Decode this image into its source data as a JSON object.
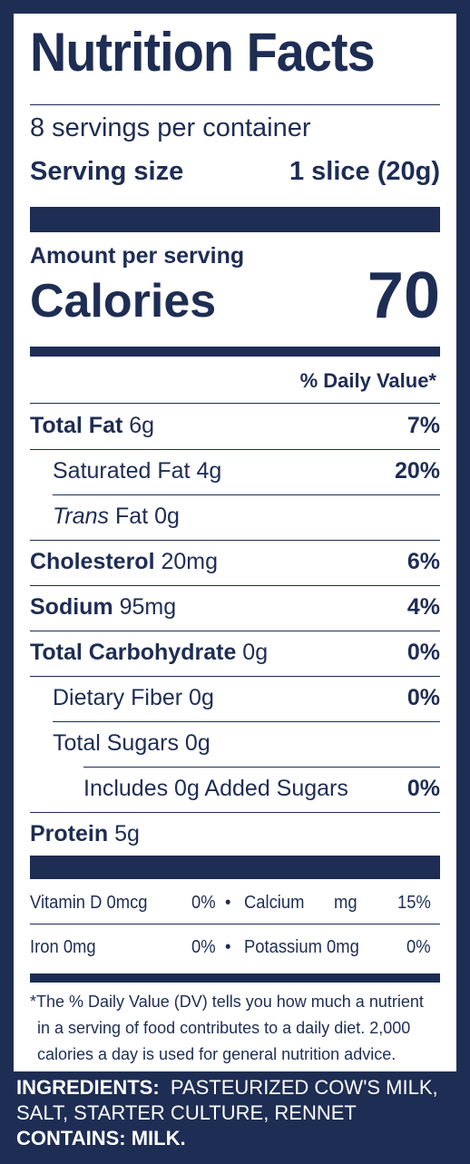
{
  "label": {
    "title": "Nutrition Facts",
    "servings_per_container": "8 servings per container",
    "serving_size_label": "Serving size",
    "serving_size_value": "1 slice (20g)",
    "amount_per_serving": "Amount per serving",
    "calories_label": "Calories",
    "calories_value": "70",
    "dv_header": "% Daily Value*",
    "nutrients": [
      {
        "name": "Total Fat",
        "amount": "6g",
        "dv": "7%"
      },
      {
        "name": "Saturated Fat",
        "amount": "4g",
        "dv": "20%"
      },
      {
        "name_italic": "Trans",
        "name": "Fat",
        "amount": "0g",
        "dv": ""
      },
      {
        "name": "Cholesterol",
        "amount": "20mg",
        "dv": "6%"
      },
      {
        "name": "Sodium",
        "amount": "95mg",
        "dv": "4%"
      },
      {
        "name": "Total Carbohydrate",
        "amount": "0g",
        "dv": "0%"
      },
      {
        "name": "Dietary Fiber",
        "amount": "0g",
        "dv": "0%"
      },
      {
        "name": "Total Sugars",
        "amount": "0g",
        "dv": ""
      },
      {
        "name": "Includes 0g Added Sugars",
        "amount": "",
        "dv": "0%"
      },
      {
        "name": "Protein",
        "amount": "5g",
        "dv": ""
      }
    ],
    "micros": [
      {
        "left_name": "Vitamin D 0mcg",
        "left_dv": "0%",
        "bullet": "•",
        "right_name": "Calcium",
        "right_unit": "mg",
        "right_dv": "15%"
      },
      {
        "left_name": "Iron 0mg",
        "left_dv": "0%",
        "bullet": "•",
        "right_name": "Potassium 0mg",
        "right_unit": "",
        "right_dv": "0%"
      }
    ],
    "footnote": [
      "*The % Daily Value (DV) tells you how much a nutrient",
      "in a serving of food contributes to a daily diet. 2,000",
      "calories a day is used for general nutrition advice."
    ]
  },
  "ingredients": {
    "label": "INGREDIENTS:",
    "value": "PASTEURIZED COW'S MILK,",
    "value_line2": "SALT, STARTER CULTURE, RENNET",
    "contains_label": "CONTAINS: MILK."
  },
  "colors": {
    "navy": "#1e2d54",
    "white": "#ffffff"
  }
}
